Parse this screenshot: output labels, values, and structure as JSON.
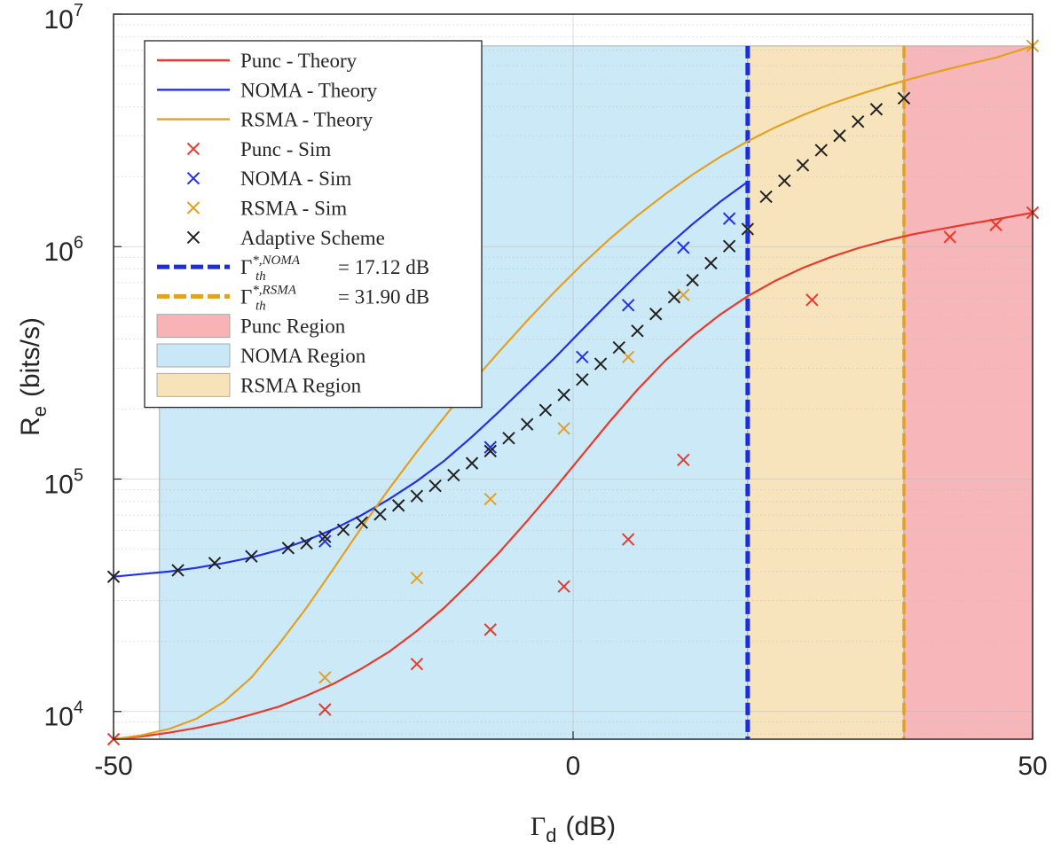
{
  "chart_data": {
    "type": "line",
    "xlabel_symbol": "Γ",
    "xlabel_sub": "d",
    "xlabel_unit": "(dB)",
    "ylabel_symbol": "R",
    "ylabel_sub": "e",
    "ylabel_unit": "(bits/s)",
    "xlim": [
      -50,
      50
    ],
    "ylim": [
      7600,
      10000000
    ],
    "yscale": "log",
    "x_ticks": [
      -50,
      0,
      50
    ],
    "x_tick_labels": [
      "-50",
      "0",
      "50"
    ],
    "y_ticks": [
      10000,
      100000,
      1000000,
      10000000
    ],
    "y_tick_base": "10",
    "y_tick_exps": [
      "4",
      "5",
      "6",
      "7"
    ],
    "grid": true,
    "legend_position": "top-left",
    "regions": [
      {
        "name": "NOMA Region",
        "x": [
          -45,
          19
        ],
        "ymax": 7300000,
        "color": "#c9e8f7"
      },
      {
        "name": "RSMA Region",
        "x": [
          19,
          36
        ],
        "ymax": 7300000,
        "color": "#f7e3b9"
      },
      {
        "name": "Punc Region",
        "x": [
          36,
          50
        ],
        "ymax": 7300000,
        "color": "#f7b3b6"
      }
    ],
    "thresholds": [
      {
        "name": "NOMA threshold",
        "x": 19,
        "color": "#1d2ed6",
        "value_text": "= 17.12 dB",
        "sup_text": "*,NOMA"
      },
      {
        "name": "RSMA threshold",
        "x": 36,
        "color": "#e3a121",
        "value_text": "= 31.90 dB",
        "sup_text": "*,RSMA"
      }
    ],
    "series": [
      {
        "name": "Punc - Theory",
        "color": "#e8392b",
        "x": [
          -50,
          -47,
          -44,
          -41,
          -38,
          -35,
          -32,
          -29,
          -26,
          -23,
          -20,
          -17,
          -14,
          -11,
          -8,
          -5,
          -2,
          1,
          4,
          7,
          10,
          13,
          16,
          19,
          22,
          25,
          28,
          31,
          34,
          37,
          40,
          43,
          46,
          50
        ],
        "y": [
          7600,
          7800,
          8100,
          8500,
          9000,
          9700,
          10500,
          11700,
          13200,
          15300,
          18100,
          22200,
          28000,
          36500,
          48500,
          66000,
          91000,
          127000,
          177000,
          242000,
          322000,
          412000,
          510000,
          612000,
          713000,
          810000,
          900000,
          985000,
          1060000,
          1130000,
          1190000,
          1250000,
          1310000,
          1400000
        ]
      },
      {
        "name": "NOMA - Theory",
        "color": "#2430e6",
        "x": [
          -50,
          -47,
          -44,
          -41,
          -38,
          -35,
          -32,
          -29,
          -26,
          -23,
          -20,
          -17,
          -14,
          -11,
          -8,
          -5,
          -2,
          1,
          4,
          7,
          10,
          13,
          16,
          19
        ],
        "y": [
          38000,
          39000,
          40000,
          41500,
          43500,
          46000,
          49500,
          54500,
          61000,
          70000,
          82000,
          98000,
          120000,
          152000,
          196000,
          255000,
          332000,
          440000,
          580000,
          760000,
          985000,
          1250000,
          1560000,
          1900000
        ]
      },
      {
        "name": "RSMA - Theory",
        "color": "#e3a121",
        "x": [
          -50,
          -47,
          -44,
          -41,
          -38,
          -35,
          -32,
          -29,
          -26,
          -23,
          -20,
          -17,
          -14,
          -11,
          -8,
          -5,
          -2,
          1,
          4,
          7,
          10,
          13,
          16,
          19,
          22,
          25,
          28,
          31,
          34,
          37,
          40,
          43,
          46,
          50
        ],
        "y": [
          7600,
          7900,
          8400,
          9300,
          11000,
          14000,
          19500,
          28000,
          41500,
          62000,
          91000,
          131000,
          185000,
          260000,
          355000,
          480000,
          640000,
          840000,
          1080000,
          1360000,
          1680000,
          2040000,
          2430000,
          2840000,
          3260000,
          3680000,
          4100000,
          4500000,
          4900000,
          5300000,
          5700000,
          6100000,
          6500000,
          7300000
        ]
      }
    ],
    "markers": [
      {
        "name": "Punc - Sim",
        "color": "#e8392b",
        "x": [
          -50,
          -27,
          -17,
          -9,
          -1,
          6,
          12,
          26,
          41,
          46,
          50
        ],
        "y": [
          7600,
          10200,
          16000,
          22500,
          34500,
          55000,
          121000,
          590000,
          1100000,
          1240000,
          1400000
        ]
      },
      {
        "name": "NOMA - Sim",
        "color": "#2430e6",
        "x": [
          -27,
          -9,
          1,
          6,
          12,
          17
        ],
        "y": [
          54000,
          137000,
          335000,
          560000,
          990000,
          1320000
        ]
      },
      {
        "name": "RSMA - Sim",
        "color": "#e3a121",
        "x": [
          -27,
          -17,
          -9,
          -1,
          6,
          12,
          50
        ],
        "y": [
          14000,
          37500,
          82000,
          165000,
          335000,
          620000,
          7300000
        ]
      },
      {
        "name": "Adaptive Scheme",
        "color": "#222222",
        "x": [
          -50,
          -43,
          -39,
          -35,
          -31,
          -29,
          -27,
          -25,
          -23,
          -21,
          -19,
          -17,
          -15,
          -13,
          -11,
          -9,
          -7,
          -5,
          -3,
          -1,
          1,
          3,
          5,
          7,
          9,
          11,
          13,
          15,
          17,
          19,
          21,
          23,
          25,
          27,
          29,
          31,
          33,
          36
        ],
        "y": [
          38000,
          40500,
          43500,
          46500,
          50500,
          53000,
          56500,
          60500,
          65000,
          70500,
          77000,
          84500,
          93500,
          104000,
          117000,
          132000,
          150000,
          172000,
          198000,
          230000,
          268000,
          313000,
          368000,
          434000,
          513000,
          606000,
          717000,
          849000,
          1005000,
          1190000,
          1640000,
          1920000,
          2240000,
          2600000,
          3000000,
          3450000,
          3900000,
          4350000
        ]
      }
    ],
    "legend": [
      {
        "label": "Punc - Theory",
        "kind": "line",
        "color": "#e8392b"
      },
      {
        "label": "NOMA - Theory",
        "kind": "line",
        "color": "#2430e6"
      },
      {
        "label": "RSMA - Theory",
        "kind": "line",
        "color": "#e3a121"
      },
      {
        "label": "Punc - Sim",
        "kind": "marker",
        "color": "#e8392b"
      },
      {
        "label": "NOMA - Sim",
        "kind": "marker",
        "color": "#2430e6"
      },
      {
        "label": "RSMA - Sim",
        "kind": "marker",
        "color": "#e3a121"
      },
      {
        "label": "Adaptive Scheme",
        "kind": "marker",
        "color": "#222222"
      },
      {
        "label": "NOMA threshold",
        "kind": "dash",
        "color": "#1d2ed6",
        "symbol": "Γ",
        "sub": "th",
        "sup": "*,NOMA",
        "value": "= 17.12 dB"
      },
      {
        "label": "RSMA threshold",
        "kind": "dash",
        "color": "#e3a121",
        "symbol": "Γ",
        "sub": "th",
        "sup": "*,RSMA",
        "value": "= 31.90 dB"
      },
      {
        "label": "Punc Region",
        "kind": "patch",
        "color": "#f7b3b6"
      },
      {
        "label": "NOMA Region",
        "kind": "patch",
        "color": "#c9e8f7"
      },
      {
        "label": "RSMA Region",
        "kind": "patch",
        "color": "#f7e3b9"
      }
    ]
  }
}
